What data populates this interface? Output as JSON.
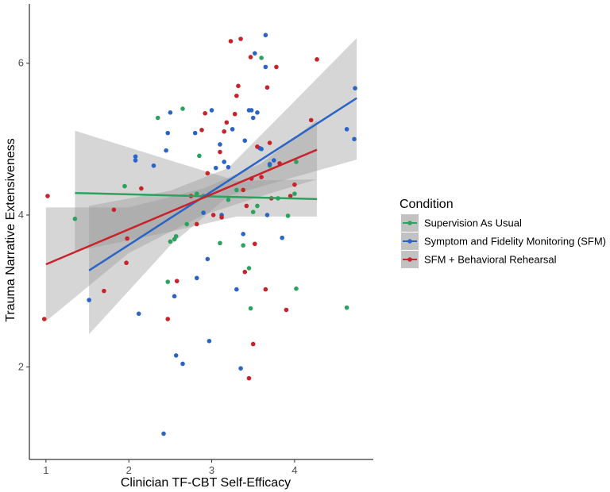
{
  "chart_data": {
    "type": "scatter",
    "title": "",
    "xlabel": "Clinician TF-CBT Self-Efficacy",
    "ylabel": "Trauma Narrative Extensiveness",
    "xlim": [
      0.8,
      4.95
    ],
    "ylim": [
      0.78,
      6.78
    ],
    "xticks": [
      1,
      2,
      3,
      4
    ],
    "yticks": [
      2,
      4,
      6
    ],
    "grid": false,
    "legend": {
      "title": "Condition",
      "position": "right"
    },
    "series": [
      {
        "name": "Supervision As Usual",
        "color": "#2ca25f",
        "points": [
          [
            1.35,
            3.95
          ],
          [
            1.95,
            4.38
          ],
          [
            2.35,
            5.28
          ],
          [
            2.65,
            5.4
          ],
          [
            2.85,
            4.78
          ],
          [
            2.7,
            3.88
          ],
          [
            2.5,
            3.65
          ],
          [
            2.55,
            3.68
          ],
          [
            2.57,
            3.72
          ],
          [
            2.82,
            4.28
          ],
          [
            2.9,
            4.25
          ],
          [
            3.1,
            3.63
          ],
          [
            3.3,
            4.33
          ],
          [
            3.38,
            3.6
          ],
          [
            3.45,
            3.3
          ],
          [
            3.47,
            2.77
          ],
          [
            3.5,
            4.04
          ],
          [
            3.6,
            6.07
          ],
          [
            3.7,
            4.65
          ],
          [
            3.8,
            4.22
          ],
          [
            3.92,
            3.99
          ],
          [
            4.0,
            4.28
          ],
          [
            4.02,
            4.7
          ],
          [
            4.02,
            3.03
          ],
          [
            4.63,
            2.78
          ],
          [
            2.47,
            3.12
          ],
          [
            3.55,
            4.12
          ],
          [
            3.2,
            4.2
          ]
        ],
        "fit": {
          "x": [
            1.35,
            4.27
          ],
          "y": [
            4.29,
            4.21
          ],
          "ci": [
            [
              1.35,
              3.52,
              5.11
            ],
            [
              2.5,
              3.78,
              4.72
            ],
            [
              3.3,
              3.98,
              4.45
            ],
            [
              4.27,
              3.98,
              4.47
            ]
          ]
        }
      },
      {
        "name": "Symptom and Fidelity Monitoring (SFM)",
        "color": "#2a65c6",
        "points": [
          [
            1.52,
            2.88
          ],
          [
            2.08,
            4.77
          ],
          [
            2.08,
            4.72
          ],
          [
            2.12,
            2.7
          ],
          [
            2.3,
            4.65
          ],
          [
            2.42,
            1.12
          ],
          [
            2.45,
            4.85
          ],
          [
            2.47,
            5.08
          ],
          [
            2.5,
            5.35
          ],
          [
            2.55,
            2.93
          ],
          [
            2.57,
            2.15
          ],
          [
            2.65,
            2.04
          ],
          [
            2.8,
            5.08
          ],
          [
            2.82,
            3.17
          ],
          [
            2.9,
            4.03
          ],
          [
            2.95,
            3.42
          ],
          [
            2.97,
            2.34
          ],
          [
            3.0,
            5.38
          ],
          [
            3.05,
            4.62
          ],
          [
            3.1,
            4.93
          ],
          [
            3.15,
            4.7
          ],
          [
            3.2,
            4.63
          ],
          [
            3.25,
            5.13
          ],
          [
            3.3,
            3.02
          ],
          [
            3.35,
            1.98
          ],
          [
            3.4,
            4.98
          ],
          [
            3.45,
            5.38
          ],
          [
            3.48,
            5.38
          ],
          [
            3.5,
            5.28
          ],
          [
            3.52,
            6.13
          ],
          [
            3.55,
            5.35
          ],
          [
            3.58,
            4.88
          ],
          [
            3.6,
            4.87
          ],
          [
            3.65,
            6.37
          ],
          [
            3.67,
            4.0
          ],
          [
            3.7,
            4.67
          ],
          [
            3.75,
            4.72
          ],
          [
            3.85,
            3.7
          ],
          [
            4.63,
            5.13
          ],
          [
            4.72,
            5.0
          ],
          [
            4.73,
            5.67
          ],
          [
            3.65,
            5.95
          ],
          [
            3.38,
            3.75
          ],
          [
            3.12,
            4.0
          ]
        ],
        "fit": {
          "x": [
            1.52,
            4.75
          ],
          "y": [
            3.27,
            5.54
          ],
          "ci": [
            [
              1.52,
              2.43,
              4.12
            ],
            [
              2.5,
              3.6,
              4.32
            ],
            [
              3.2,
              4.25,
              4.62
            ],
            [
              4.0,
              4.5,
              5.5
            ],
            [
              4.75,
              4.73,
              6.33
            ]
          ]
        }
      },
      {
        "name": "SFM + Behavioral Rehearsal",
        "color": "#c8222b",
        "points": [
          [
            0.98,
            2.63
          ],
          [
            1.02,
            4.25
          ],
          [
            1.7,
            3.0
          ],
          [
            1.82,
            4.07
          ],
          [
            1.97,
            3.37
          ],
          [
            1.98,
            3.69
          ],
          [
            2.15,
            4.35
          ],
          [
            2.47,
            2.63
          ],
          [
            2.58,
            3.13
          ],
          [
            2.75,
            4.25
          ],
          [
            2.82,
            3.88
          ],
          [
            2.88,
            5.12
          ],
          [
            2.92,
            5.34
          ],
          [
            3.02,
            4.0
          ],
          [
            3.1,
            4.83
          ],
          [
            3.15,
            5.1
          ],
          [
            3.18,
            5.22
          ],
          [
            3.23,
            6.29
          ],
          [
            3.28,
            5.33
          ],
          [
            3.3,
            5.57
          ],
          [
            3.32,
            5.7
          ],
          [
            3.35,
            6.32
          ],
          [
            3.38,
            4.33
          ],
          [
            3.4,
            3.25
          ],
          [
            3.42,
            4.12
          ],
          [
            3.45,
            1.85
          ],
          [
            3.47,
            6.08
          ],
          [
            3.48,
            4.48
          ],
          [
            3.5,
            2.3
          ],
          [
            3.52,
            3.62
          ],
          [
            3.55,
            4.9
          ],
          [
            3.6,
            4.5
          ],
          [
            3.65,
            3.02
          ],
          [
            3.67,
            5.68
          ],
          [
            3.7,
            4.95
          ],
          [
            3.72,
            4.22
          ],
          [
            3.78,
            5.95
          ],
          [
            3.82,
            4.68
          ],
          [
            3.9,
            2.75
          ],
          [
            3.95,
            4.25
          ],
          [
            4.0,
            4.4
          ],
          [
            4.2,
            5.25
          ],
          [
            4.27,
            6.05
          ],
          [
            3.12,
            3.97
          ],
          [
            2.95,
            4.55
          ]
        ],
        "fit": {
          "x": [
            1.0,
            4.27
          ],
          "y": [
            3.35,
            4.86
          ],
          "ci": [
            [
              1.0,
              2.6,
              4.1
            ],
            [
              2.0,
              3.5,
              4.1
            ],
            [
              2.9,
              4.0,
              4.35
            ],
            [
              3.6,
              4.25,
              4.68
            ],
            [
              4.27,
              4.47,
              5.25
            ]
          ]
        }
      }
    ]
  }
}
